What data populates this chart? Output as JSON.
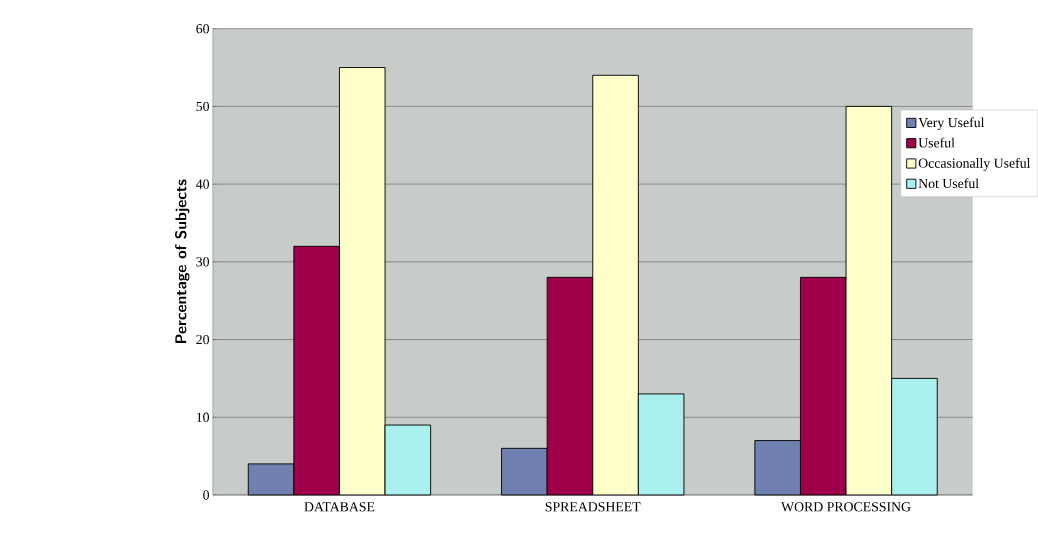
{
  "chart_data": {
    "type": "bar",
    "ylabel": "Percentage of Subjects",
    "categories": [
      "DATABASE",
      "SPREADSHEET",
      "WORD PROCESSING"
    ],
    "series": [
      {
        "name": "Very Useful",
        "color": "#7080b0",
        "values": [
          4,
          6,
          7
        ]
      },
      {
        "name": "Useful",
        "color": "#a0004a",
        "values": [
          32,
          28,
          28
        ]
      },
      {
        "name": "Occasionally Useful",
        "color": "#ffffcc",
        "values": [
          55,
          54,
          50
        ]
      },
      {
        "name": "Not Useful",
        "color": "#aaf0ee",
        "values": [
          9,
          13,
          15
        ]
      }
    ],
    "ylim": [
      0,
      60
    ],
    "yticks": [
      0,
      10,
      20,
      30,
      40,
      50,
      60
    ],
    "grid": "y",
    "legend": "right"
  }
}
